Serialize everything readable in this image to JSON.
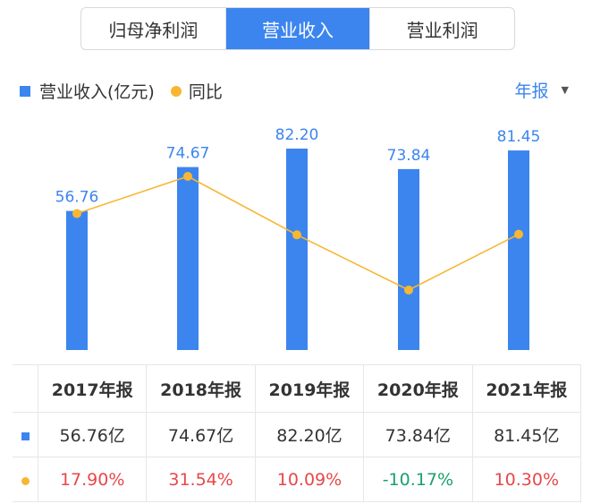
{
  "tabs": [
    "归母净利润",
    "营业收入",
    "营业利润"
  ],
  "active_tab": 1,
  "legend": {
    "revenue": "营业收入(亿元)",
    "yoy": "同比"
  },
  "period_selector": {
    "label": "年报",
    "icon": "caret-down-icon"
  },
  "colors": {
    "bar": "#3c85ee",
    "line": "#f7b733",
    "positive": "#e8474a",
    "negative": "#1aa06d"
  },
  "chart_data": {
    "type": "bar",
    "categories": [
      "2017年报",
      "2018年报",
      "2019年报",
      "2020年报",
      "2021年报"
    ],
    "series": [
      {
        "name": "营业收入(亿元)",
        "type": "bar",
        "values": [
          56.76,
          74.67,
          82.2,
          73.84,
          81.45
        ],
        "labels": [
          "56.76",
          "74.67",
          "82.20",
          "73.84",
          "81.45"
        ]
      },
      {
        "name": "同比",
        "type": "line",
        "values": [
          17.9,
          31.54,
          10.09,
          -10.17,
          10.3
        ]
      }
    ],
    "grid": false,
    "legend_position": "top-left"
  },
  "table": {
    "headers": [
      "2017年报",
      "2018年报",
      "2019年报",
      "2020年报",
      "2021年报"
    ],
    "revenue_row": [
      "56.76亿",
      "74.67亿",
      "82.20亿",
      "73.84亿",
      "81.45亿"
    ],
    "yoy_row": [
      "17.90%",
      "31.54%",
      "10.09%",
      "-10.17%",
      "10.30%"
    ]
  }
}
